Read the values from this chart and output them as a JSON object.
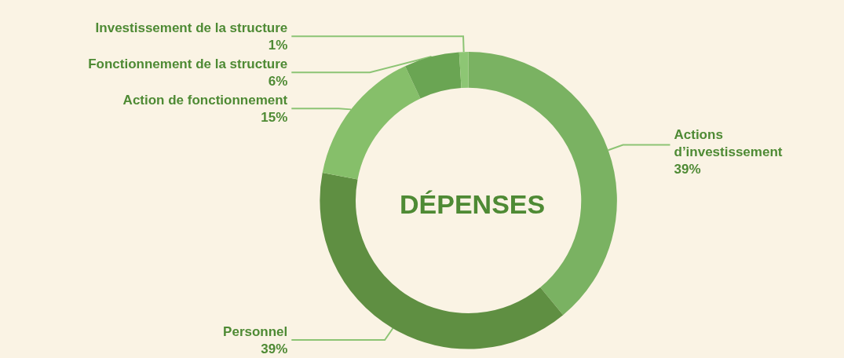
{
  "chart_data": {
    "type": "donut",
    "title": "DÉPENSES",
    "categories": [
      "Actions\nd’investissement",
      "Personnel",
      "Action de fonctionnement",
      "Fonctionnement de la structure",
      "Investissement de la structure"
    ],
    "values": [
      39,
      39,
      15,
      6,
      1
    ],
    "colors": [
      "#7ab262",
      "#5f8f42",
      "#86bf6a",
      "#6aa553",
      "#8dc674"
    ],
    "value_labels": [
      "39%",
      "39%",
      "15%",
      "6%",
      "1%"
    ],
    "legend": false
  }
}
